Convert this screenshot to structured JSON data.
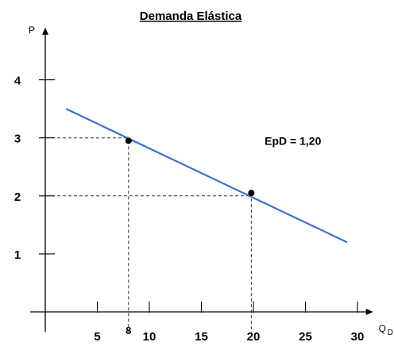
{
  "chart_data": {
    "type": "line",
    "title": "Demanda Elástica",
    "ylabel": "P",
    "xlabel": "Q",
    "xlabel_sub": "D",
    "xlim": [
      0,
      31.5
    ],
    "ylim": [
      0,
      4.9
    ],
    "x_ticks": [
      5,
      10,
      15,
      20,
      25,
      30
    ],
    "y_ticks": [
      1,
      2,
      3,
      4
    ],
    "grid": false,
    "legend": "none",
    "series": [
      {
        "x": [
          2,
          29
        ],
        "y": [
          3.5,
          1.2
        ],
        "color": "#3a6fd4"
      }
    ],
    "points": [
      {
        "x": 8,
        "y": 2.95,
        "guide_y": 3
      },
      {
        "x": 19.8,
        "y": 2.05,
        "guide_y": 2
      }
    ],
    "x_marker": {
      "x": 8,
      "label": "8"
    },
    "annotation": {
      "text": "EpD = 1,20",
      "x": 23.8,
      "y": 2.95
    }
  }
}
